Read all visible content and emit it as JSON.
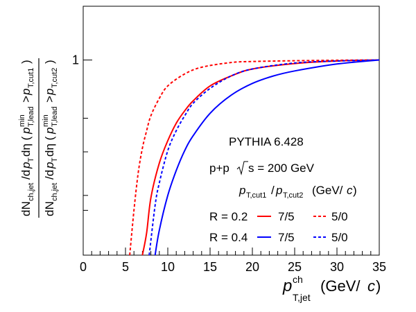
{
  "chart_data": {
    "type": "line",
    "title": "",
    "generator": "PYTHIA 6.428",
    "system_text": "p+p",
    "energy_text": "s = 200 GeV",
    "xlabel": {
      "main": "p",
      "sup": "ch",
      "sub": "T,jet",
      "unit": "(GeV/c)"
    },
    "ylabel": {
      "numerator": "dN_ch,jet/dp_T dη (p^min_T,lead > p_T,cut1)",
      "denominator": "dN_ch,jet/dp_T dη (p^min_T,lead > p_T,cut2)"
    },
    "legend_header": "p_T,cut1/p_T,cut2 (GeV/c)",
    "xlim": [
      0,
      35
    ],
    "xticks": [
      0,
      5,
      10,
      15,
      20,
      25,
      30,
      35
    ],
    "xtick_labels": [
      "0",
      "5",
      "10",
      "15",
      "20",
      "25",
      "30",
      "35"
    ],
    "yticks_labeled": [
      {
        "value": 1,
        "label": "1"
      }
    ],
    "grid": false,
    "legend_position": "center-right",
    "legend_rows": [
      {
        "label": "R = 0.2",
        "entries": [
          {
            "series": 0,
            "text": "7/5"
          },
          {
            "series": 1,
            "text": "5/0"
          }
        ]
      },
      {
        "label": "R = 0.4",
        "entries": [
          {
            "series": 2,
            "text": "7/5"
          },
          {
            "series": 3,
            "text": "5/0"
          }
        ]
      }
    ],
    "y_unit_note": "y values expressed as fraction of the y-range top; value 1 marked on axis",
    "series": [
      {
        "name": "R = 0.2 7/5",
        "color": "#ff0000",
        "dash": "solid",
        "x": [
          7.0,
          7.5,
          8,
          9,
          10,
          11,
          12,
          13,
          15,
          17.5,
          20,
          25,
          30,
          35
        ],
        "y": [
          0.0,
          0.09,
          0.23,
          0.37,
          0.46,
          0.53,
          0.58,
          0.62,
          0.68,
          0.72,
          0.748,
          0.77,
          0.78,
          0.784
        ]
      },
      {
        "name": "R = 0.2 5/0",
        "color": "#ff0000",
        "dash": "dashed",
        "x": [
          5.5,
          6,
          6.5,
          7,
          7.5,
          8,
          9,
          10,
          12,
          14,
          17.5,
          20,
          25,
          30,
          35
        ],
        "y": [
          0.0,
          0.18,
          0.33,
          0.43,
          0.5,
          0.56,
          0.63,
          0.68,
          0.728,
          0.755,
          0.774,
          0.778,
          0.781,
          0.783,
          0.784
        ]
      },
      {
        "name": "R = 0.4 7/5",
        "color": "#0000ff",
        "dash": "solid",
        "x": [
          8.5,
          9,
          10,
          11,
          12,
          13,
          15,
          17.5,
          20,
          22.5,
          25,
          30,
          35
        ],
        "y": [
          0.0,
          0.1,
          0.24,
          0.34,
          0.42,
          0.48,
          0.57,
          0.643,
          0.69,
          0.72,
          0.74,
          0.768,
          0.784
        ]
      },
      {
        "name": "R = 0.4 5/0",
        "color": "#0000ff",
        "dash": "dashed",
        "x": [
          7.8,
          8.5,
          9,
          10,
          11,
          12,
          13,
          15,
          17.5,
          20,
          25,
          30,
          35
        ],
        "y": [
          0.0,
          0.2,
          0.29,
          0.42,
          0.5,
          0.56,
          0.61,
          0.67,
          0.72,
          0.748,
          0.772,
          0.78,
          0.784
        ]
      }
    ]
  }
}
